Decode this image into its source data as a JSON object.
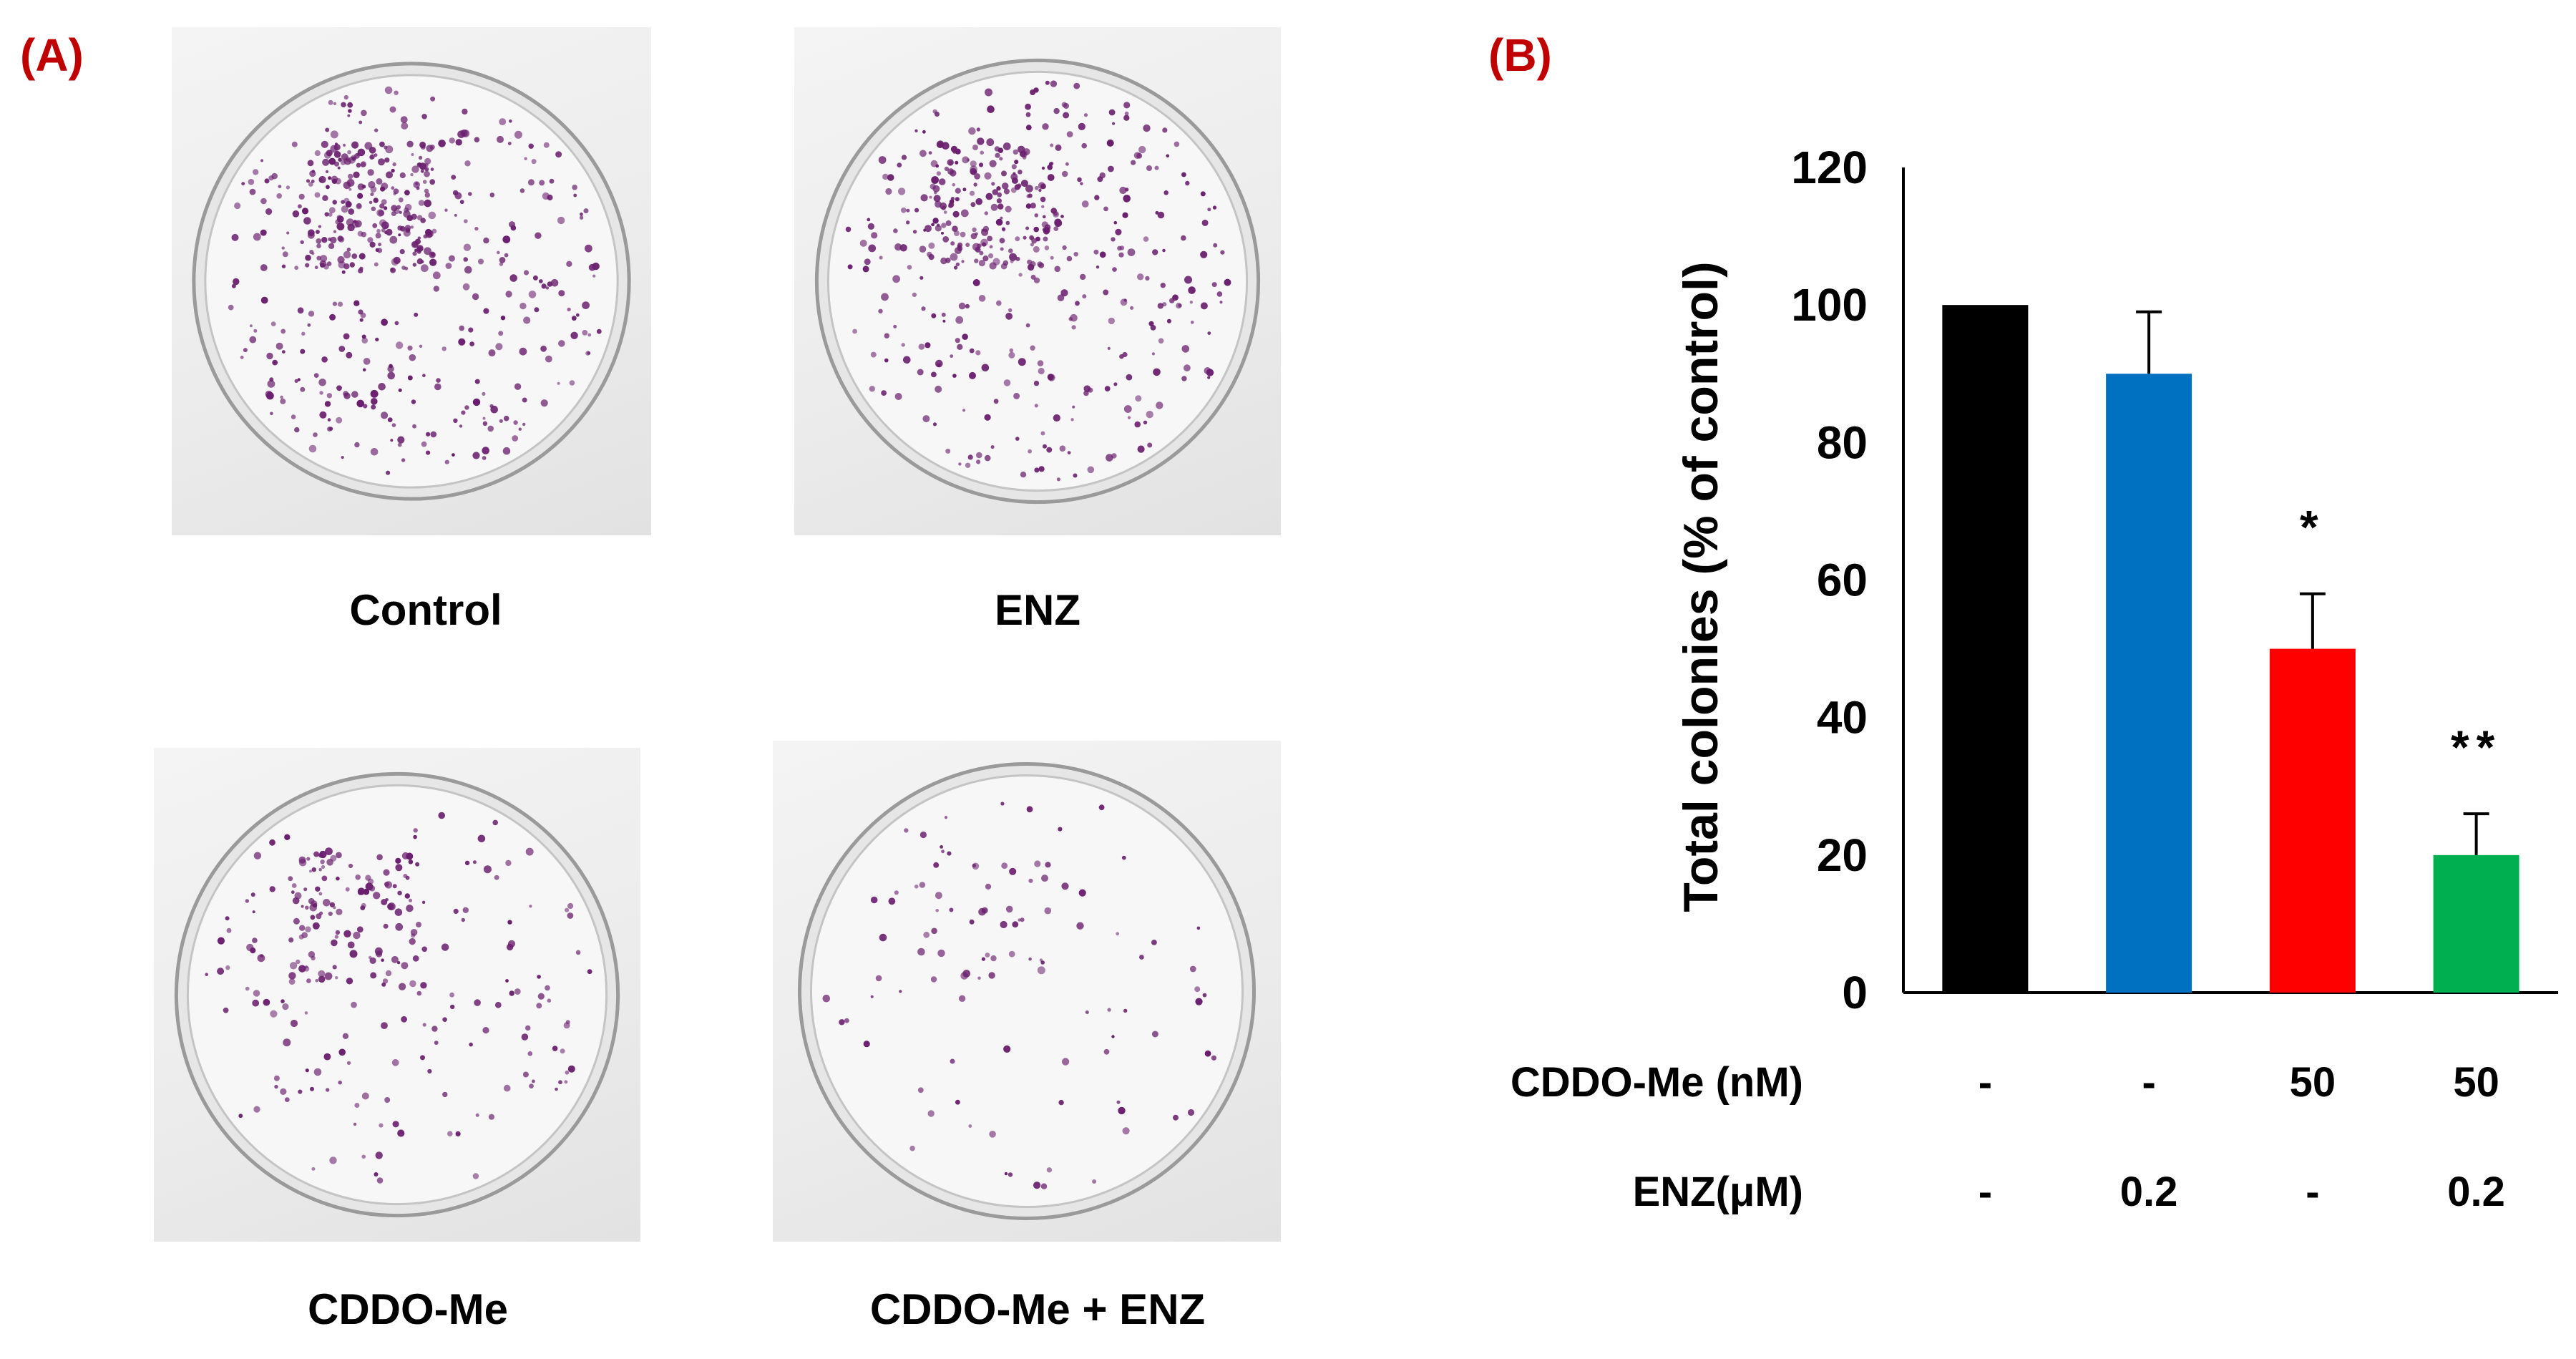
{
  "panel_a": {
    "label": "(A)",
    "dishes": [
      {
        "caption": "Control",
        "colony_density": 1.0
      },
      {
        "caption": "ENZ",
        "colony_density": 0.9
      },
      {
        "caption": "CDDO-Me",
        "colony_density": 0.5
      },
      {
        "caption": "CDDO-Me + ENZ",
        "colony_density": 0.2
      }
    ],
    "colors": {
      "colony": "#6a1f6e",
      "dish_rim": "#9a9a9a"
    }
  },
  "panel_b": {
    "label": "(B)",
    "treatment_table": {
      "rows": [
        {
          "label": "CDDO-Me (nM)",
          "values": [
            "-",
            "-",
            "50",
            "50"
          ]
        },
        {
          "label": "ENZ(μM)",
          "values": [
            "-",
            "0.2",
            "-",
            "0.2"
          ]
        }
      ]
    }
  },
  "chart_data": {
    "type": "bar",
    "title": "",
    "xlabel": "",
    "ylabel": "Total colonies (% of control)",
    "ylim": [
      0,
      120
    ],
    "yticks": [
      "0",
      "20",
      "40",
      "60",
      "80",
      "100",
      "120"
    ],
    "values": [
      100,
      90,
      50,
      20
    ],
    "errors": [
      0,
      9,
      8,
      6
    ],
    "significance": [
      "",
      "",
      "*",
      "**"
    ],
    "bar_colors": [
      "#000000",
      "#0070c0",
      "#ff0000",
      "#00b050"
    ],
    "grid": false
  }
}
